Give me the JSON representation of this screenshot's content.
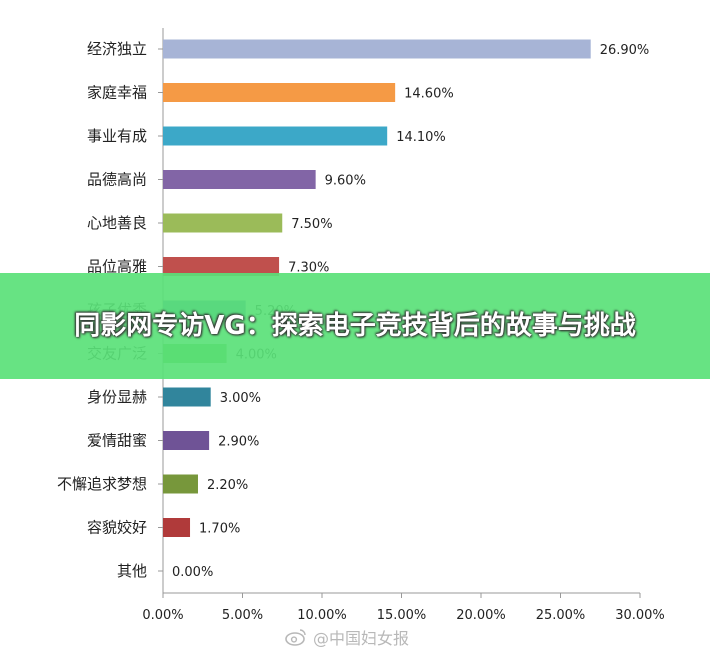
{
  "banner": {
    "title": "同影网专访VG：探索电子竞技背后的故事与挑战"
  },
  "watermark": {
    "text": "@中国妇女报"
  },
  "chart_data": {
    "type": "bar",
    "orientation": "horizontal",
    "categories": [
      "经济独立",
      "家庭幸福",
      "事业有成",
      "品德高尚",
      "心地善良",
      "品位高雅",
      "孩子优秀",
      "交友广泛",
      "身份显赫",
      "爱情甜蜜",
      "不懈追求梦想",
      "容貌姣好",
      "其他"
    ],
    "values": [
      26.9,
      14.6,
      14.1,
      9.6,
      7.5,
      7.3,
      5.2,
      4.0,
      3.0,
      2.9,
      2.2,
      1.7,
      0.0
    ],
    "value_labels": [
      "26.90%",
      "14.60%",
      "14.10%",
      "9.60%",
      "7.50%",
      "7.30%",
      "5.20%",
      "4.00%",
      "3.00%",
      "2.90%",
      "2.20%",
      "1.70%",
      "0.00%"
    ],
    "colors": [
      "#a7b4d6",
      "#f59a45",
      "#3ca8c8",
      "#8265a6",
      "#9bbb59",
      "#c0504d",
      "#4f81bd",
      "#5cb745",
      "#31859c",
      "#6f5396",
      "#77973b",
      "#b03a3a",
      "#4f81bd"
    ],
    "xlim": [
      0,
      30
    ],
    "xticks": [
      0,
      5,
      10,
      15,
      20,
      25,
      30
    ],
    "xtick_labels": [
      "0.00%",
      "5.00%",
      "10.00%",
      "15.00%",
      "20.00%",
      "25.00%",
      "30.00%"
    ],
    "grid": false,
    "legend": "none"
  }
}
